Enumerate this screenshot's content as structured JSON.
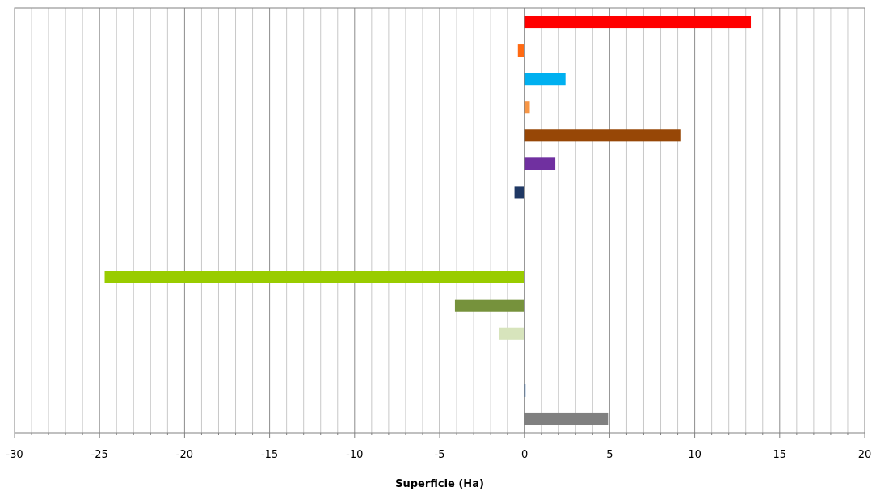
{
  "chart_data": {
    "type": "bar",
    "orientation": "horizontal",
    "title": "",
    "xlabel": "Superficie (Ha)",
    "ylabel": "",
    "xlim": [
      -30,
      20
    ],
    "major_tick_step": 5,
    "minor_tick_step": 1,
    "grid": true,
    "legend": "none",
    "x_tick_labels": [
      "-30",
      "-25",
      "-20",
      "-15",
      "-10",
      "-5",
      "0",
      "5",
      "10",
      "15",
      "20"
    ],
    "category_count": 15,
    "bars": [
      {
        "value": 13.3,
        "color": "#ff0000"
      },
      {
        "value": -0.4,
        "color": "#ff6a13"
      },
      {
        "value": 2.4,
        "color": "#00b0f0"
      },
      {
        "value": 0.3,
        "color": "#f79646"
      },
      {
        "value": 9.2,
        "color": "#974706"
      },
      {
        "value": 1.8,
        "color": "#7030a0"
      },
      {
        "value": -0.6,
        "color": "#1f3864"
      },
      {
        "value": 0,
        "color": "#ffffff"
      },
      {
        "value": 0,
        "color": "#ffffff"
      },
      {
        "value": -24.7,
        "color": "#99cc00"
      },
      {
        "value": -4.1,
        "color": "#76923c"
      },
      {
        "value": -1.5,
        "color": "#d7e4bc"
      },
      {
        "value": 0,
        "color": "#ffffff"
      },
      {
        "value": 0.05,
        "color": "#4f81bd"
      },
      {
        "value": 4.9,
        "color": "#808080"
      }
    ]
  }
}
